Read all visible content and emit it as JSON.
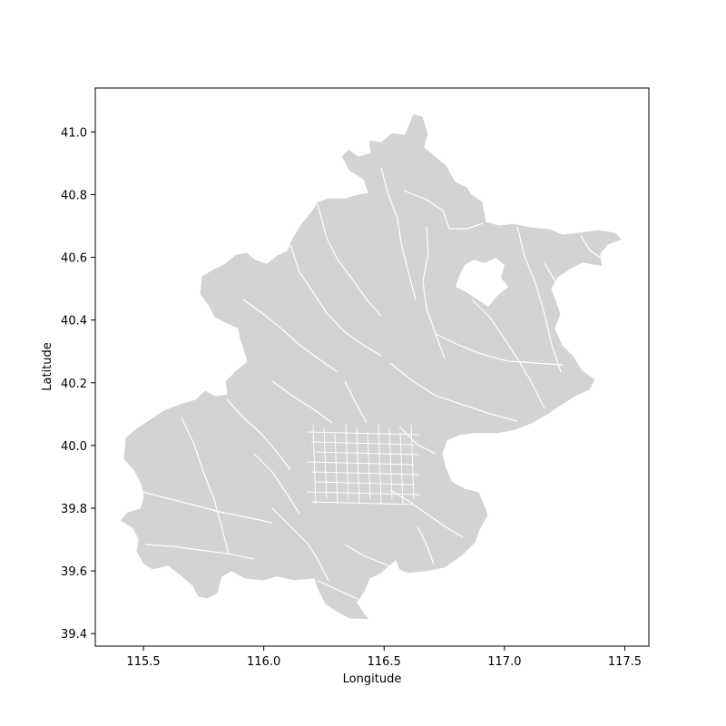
{
  "chart_data": {
    "type": "map",
    "title": "",
    "xlabel": "Longitude",
    "ylabel": "Latitude",
    "xlim": [
      115.3,
      117.6
    ],
    "ylim": [
      39.36,
      41.14
    ],
    "xticks": [
      115.5,
      116.0,
      116.5,
      117.0,
      117.5
    ],
    "xtick_labels": [
      "115.5",
      "116.0",
      "116.5",
      "117.0",
      "117.5"
    ],
    "yticks": [
      39.4,
      39.6,
      39.8,
      40.0,
      40.2,
      40.4,
      40.6,
      40.8,
      41.0
    ],
    "ytick_labels": [
      "39.4",
      "39.6",
      "39.8",
      "40.0",
      "40.2",
      "40.4",
      "40.6",
      "40.8",
      "41.0"
    ],
    "fill_color": "#d3d3d3",
    "edge_color": "#ffffff",
    "grid": false,
    "legend": "none"
  }
}
